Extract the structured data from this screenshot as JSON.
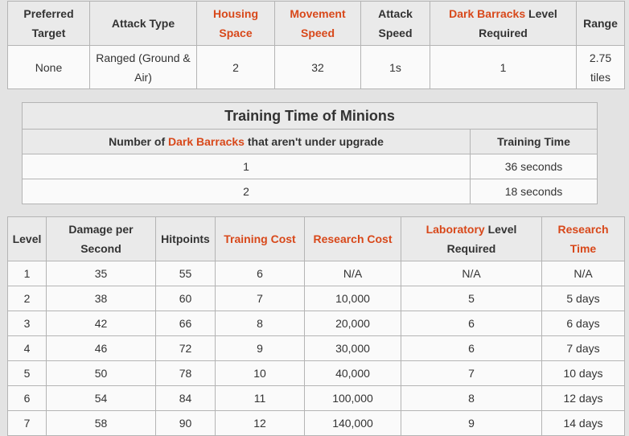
{
  "stats_table": {
    "headers": {
      "preferred_target": "Preferred Target",
      "attack_type": "Attack Type",
      "housing_space": "Housing Space",
      "movement_speed": "Movement Speed",
      "attack_speed": "Attack Speed",
      "dark_barracks": "Dark Barracks",
      "level_required": "Level Required",
      "range": "Range"
    },
    "row": {
      "preferred_target": "None",
      "attack_type": "Ranged (Ground & Air)",
      "housing_space": "2",
      "movement_speed": "32",
      "attack_speed": "1s",
      "dark_barracks_level": "1",
      "range": "2.75 tiles"
    }
  },
  "training_table": {
    "title": "Training Time of Minions",
    "header_prefix": "Number of ",
    "header_link": "Dark Barracks",
    "header_suffix": " that aren't under upgrade",
    "header_time": "Training Time",
    "rows": [
      {
        "count": "1",
        "time": "36 seconds"
      },
      {
        "count": "2",
        "time": "18 seconds"
      }
    ]
  },
  "level_table": {
    "headers": {
      "level": "Level",
      "dps": "Damage per Second",
      "hitpoints": "Hitpoints",
      "training_cost": "Training Cost",
      "research_cost": "Research Cost",
      "laboratory": "Laboratory",
      "level_required": "Level Required",
      "research_time": "Research Time"
    },
    "rows": [
      {
        "level": "1",
        "dps": "35",
        "hp": "55",
        "training_cost": "6",
        "research_cost": "N/A",
        "lab": "N/A",
        "research_time": "N/A"
      },
      {
        "level": "2",
        "dps": "38",
        "hp": "60",
        "training_cost": "7",
        "research_cost": "10,000",
        "lab": "5",
        "research_time": "5 days"
      },
      {
        "level": "3",
        "dps": "42",
        "hp": "66",
        "training_cost": "8",
        "research_cost": "20,000",
        "lab": "6",
        "research_time": "6 days"
      },
      {
        "level": "4",
        "dps": "46",
        "hp": "72",
        "training_cost": "9",
        "research_cost": "30,000",
        "lab": "6",
        "research_time": "7 days"
      },
      {
        "level": "5",
        "dps": "50",
        "hp": "78",
        "training_cost": "10",
        "research_cost": "40,000",
        "lab": "7",
        "research_time": "10 days"
      },
      {
        "level": "6",
        "dps": "54",
        "hp": "84",
        "training_cost": "11",
        "research_cost": "100,000",
        "lab": "8",
        "research_time": "12 days"
      },
      {
        "level": "7",
        "dps": "58",
        "hp": "90",
        "training_cost": "12",
        "research_cost": "140,000",
        "lab": "9",
        "research_time": "14 days"
      }
    ]
  }
}
